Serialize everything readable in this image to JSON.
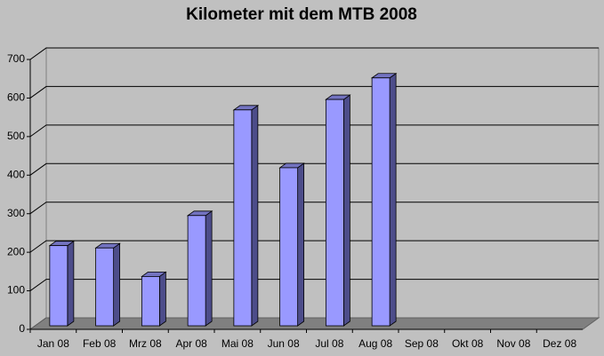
{
  "chart_data": {
    "type": "bar3d",
    "title": "Kilometer mit dem MTB 2008",
    "categories": [
      "Jan 08",
      "Feb 08",
      "Mrz 08",
      "Apr 08",
      "Mai 08",
      "Jun 08",
      "Jul 08",
      "Aug 08",
      "Sep 08",
      "Okt 08",
      "Nov 08",
      "Dez 08"
    ],
    "values": [
      208,
      202,
      128,
      286,
      560,
      410,
      587,
      643,
      null,
      null,
      null,
      null
    ],
    "color": "#9999ff",
    "ylim": [
      0,
      700
    ],
    "yticks": [
      0,
      100,
      200,
      300,
      400,
      500,
      600,
      700
    ],
    "grid": true
  }
}
